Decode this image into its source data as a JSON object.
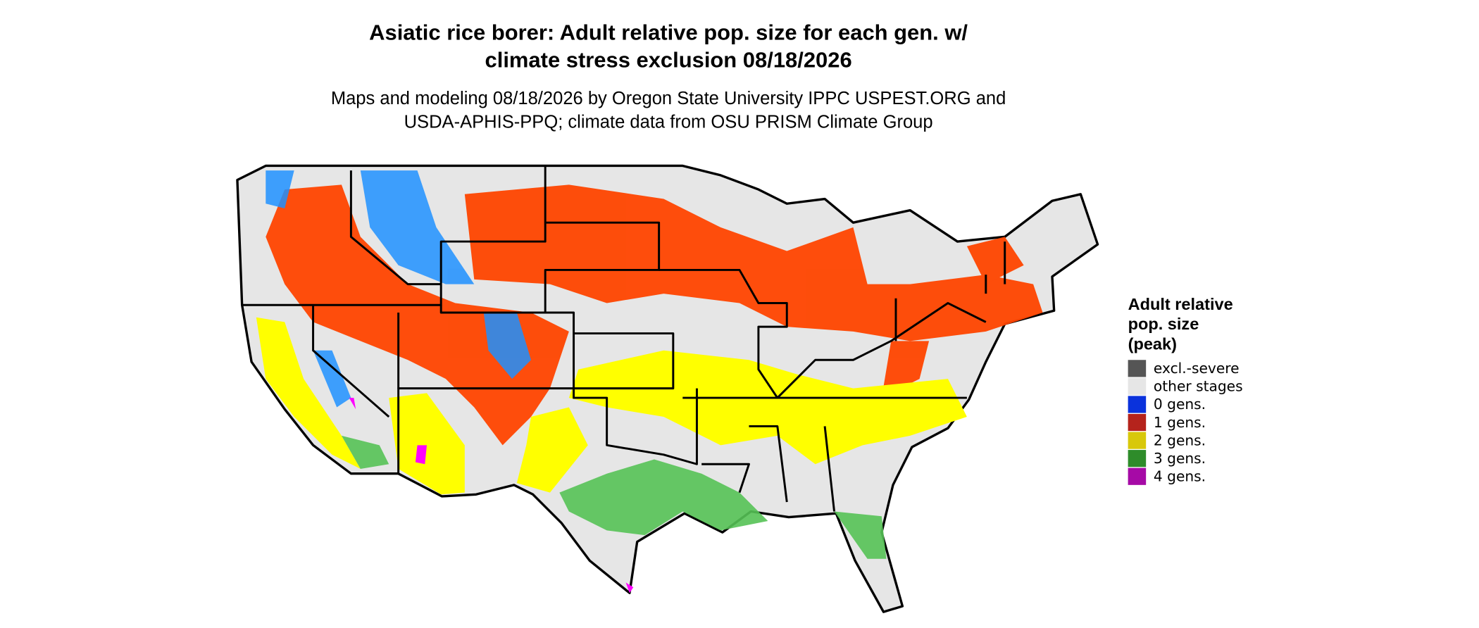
{
  "title": [
    "Asiatic rice borer: Adult relative pop. size for each gen. w/",
    "climate stress exclusion 08/18/2026"
  ],
  "subtitle": [
    "Maps and modeling 08/18/2026 by Oregon State University IPPC USPEST.ORG and",
    "USDA-APHIS-PPQ; climate data from OSU PRISM Climate Group"
  ],
  "legend": {
    "title": [
      "Adult relative",
      "pop. size",
      "(peak)"
    ],
    "items": [
      {
        "label": "excl.-severe",
        "color": "#555555"
      },
      {
        "label": "other stages",
        "color": "#e6e6e6"
      },
      {
        "label": "0 gens.",
        "color": "#0a32dc"
      },
      {
        "label": "1 gens.",
        "color": "#b5231c"
      },
      {
        "label": "2 gens.",
        "color": "#d8c80a"
      },
      {
        "label": "3 gens.",
        "color": "#2e8c2a"
      },
      {
        "label": "4 gens.",
        "color": "#a60aa6"
      }
    ]
  }
}
